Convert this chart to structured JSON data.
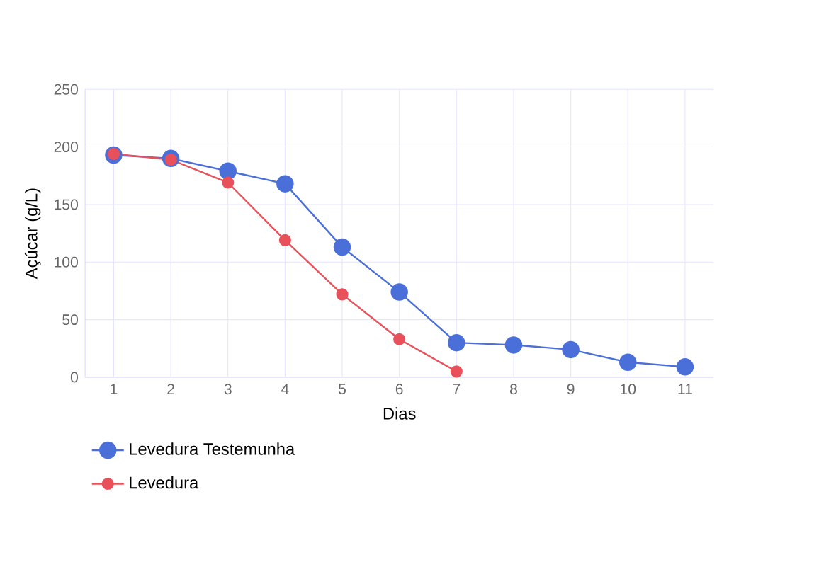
{
  "chart_data": {
    "type": "line",
    "xlabel": "Dias",
    "ylabel": "Açúcar (g/L)",
    "categories": [
      "1",
      "2",
      "3",
      "4",
      "5",
      "6",
      "7",
      "8",
      "9",
      "10",
      "11"
    ],
    "series": [
      {
        "name": "Levedura Testemunha",
        "color": "#4a6fd8",
        "values": [
          193,
          190,
          179,
          168,
          113,
          74,
          30,
          28,
          24,
          13,
          9
        ]
      },
      {
        "name": "Levedura",
        "color": "#e8505a",
        "values": [
          194,
          189,
          169,
          119,
          72,
          33,
          5,
          null,
          null,
          null,
          null
        ]
      }
    ],
    "ylim": [
      0,
      250
    ],
    "yticks": [
      0,
      50,
      100,
      150,
      200,
      250
    ],
    "grid": true,
    "legend": "bottom",
    "marker": "circle"
  }
}
